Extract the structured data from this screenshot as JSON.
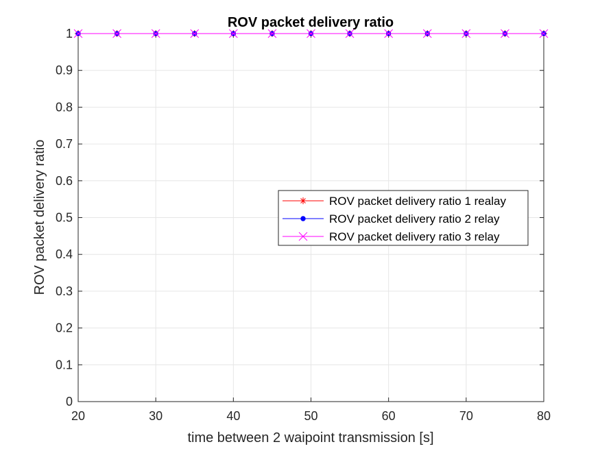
{
  "chart_data": {
    "type": "line",
    "title": "ROV packet delivery ratio",
    "xlabel": "time between 2 waipoint transmission [s]",
    "ylabel": "ROV packet delivery ratio",
    "xlim": [
      20,
      80
    ],
    "ylim": [
      0,
      1
    ],
    "grid": true,
    "legend_position": "right",
    "x_ticks": [
      20,
      30,
      40,
      50,
      60,
      70,
      80
    ],
    "y_ticks": [
      0,
      0.1,
      0.2,
      0.3,
      0.4,
      0.5,
      0.6,
      0.7,
      0.8,
      0.9,
      1
    ],
    "x_tick_labels": [
      "20",
      "30",
      "40",
      "50",
      "60",
      "70",
      "80"
    ],
    "y_tick_labels": [
      "0",
      "0.1",
      "0.2",
      "0.3",
      "0.4",
      "0.5",
      "0.6",
      "0.7",
      "0.8",
      "0.9",
      "1"
    ],
    "x": [
      20,
      25,
      30,
      35,
      40,
      45,
      50,
      55,
      60,
      65,
      70,
      75,
      80
    ],
    "series": [
      {
        "name": "ROV packet delivery ratio 1 realay",
        "color": "#ff0000",
        "marker": "asterisk",
        "values": [
          1,
          1,
          1,
          1,
          1,
          1,
          1,
          1,
          1,
          1,
          1,
          1,
          1
        ]
      },
      {
        "name": "ROV packet delivery ratio 2 relay",
        "color": "#0000ff",
        "marker": "dot",
        "values": [
          1,
          1,
          1,
          1,
          1,
          1,
          1,
          1,
          1,
          1,
          1,
          1,
          1
        ]
      },
      {
        "name": "ROV packet delivery ratio 3 relay",
        "color": "#ff00ff",
        "marker": "x",
        "values": [
          1,
          1,
          1,
          1,
          1,
          1,
          1,
          1,
          1,
          1,
          1,
          1,
          1
        ]
      }
    ]
  }
}
